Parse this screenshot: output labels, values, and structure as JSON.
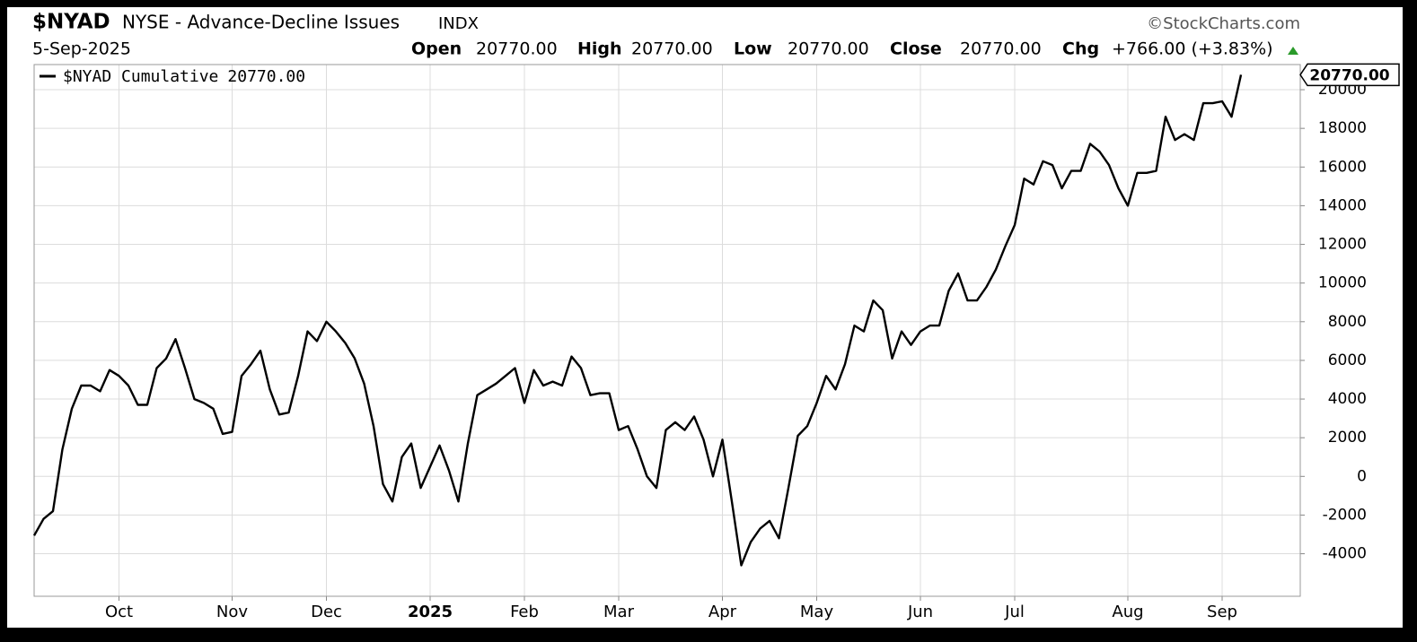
{
  "chart_data": {
    "type": "line",
    "title": "$NYAD",
    "subtitle": "NYSE - Advance-Decline Issues",
    "exchange": "INDX",
    "source": "©StockCharts.com",
    "date": "5-Sep-2025",
    "quote": [
      {
        "label": "Open",
        "value": "20770.00"
      },
      {
        "label": "High",
        "value": "20770.00"
      },
      {
        "label": "Low",
        "value": "20770.00"
      },
      {
        "label": "Close",
        "value": "20770.00"
      },
      {
        "label": "Chg",
        "value": "+766.00 (+3.83%)"
      }
    ],
    "categories": [
      null,
      null,
      null,
      null,
      null,
      null,
      null,
      null,
      null,
      "Oct",
      null,
      null,
      null,
      null,
      null,
      null,
      null,
      null,
      null,
      null,
      null,
      "Nov",
      null,
      null,
      null,
      null,
      null,
      null,
      null,
      null,
      null,
      "Dec",
      null,
      null,
      null,
      null,
      null,
      null,
      null,
      null,
      null,
      null,
      "2025",
      null,
      null,
      null,
      null,
      null,
      null,
      null,
      null,
      null,
      "Feb",
      null,
      null,
      null,
      null,
      null,
      null,
      null,
      null,
      null,
      "Mar",
      null,
      null,
      null,
      null,
      null,
      null,
      null,
      null,
      null,
      null,
      "Apr",
      null,
      null,
      null,
      null,
      null,
      null,
      null,
      null,
      null,
      "May",
      null,
      null,
      null,
      null,
      null,
      null,
      null,
      null,
      null,
      null,
      "Jun",
      null,
      null,
      null,
      null,
      null,
      null,
      null,
      null,
      null,
      "Jul",
      null,
      null,
      null,
      null,
      null,
      null,
      null,
      null,
      null,
      null,
      null,
      "Aug",
      null,
      null,
      null,
      null,
      null,
      null,
      null,
      null,
      null,
      "Sep",
      null,
      null
    ],
    "series": [
      {
        "name": "$NYAD Cumulative",
        "last_value_label": "20770.00",
        "color": "#000000",
        "values": [
          -3060,
          -2200,
          -1800,
          1400,
          3500,
          4700,
          4700,
          4400,
          5500,
          5200,
          4700,
          3700,
          3700,
          5600,
          6100,
          7100,
          5600,
          4000,
          3800,
          3500,
          2200,
          2300,
          5200,
          5800,
          6500,
          4500,
          3200,
          3300,
          5200,
          7500,
          7000,
          8000,
          7500,
          6900,
          6100,
          4800,
          2600,
          -400,
          -1300,
          1000,
          1700,
          -600,
          500,
          1600,
          300,
          -1300,
          1700,
          4200,
          4500,
          4800,
          5200,
          5600,
          3800,
          5500,
          4700,
          4900,
          4700,
          6200,
          5600,
          4200,
          4300,
          4300,
          2400,
          2600,
          1400,
          0,
          -600,
          2400,
          2800,
          2400,
          3100,
          1900,
          0,
          1900,
          -1300,
          -4600,
          -3400,
          -2700,
          -2300,
          -3200,
          -600,
          2100,
          2600,
          3800,
          5200,
          4500,
          5800,
          7800,
          7500,
          9100,
          8600,
          6100,
          7500,
          6800,
          7500,
          7800,
          7800,
          9600,
          10500,
          9100,
          9100,
          9800,
          10700,
          11900,
          13000,
          15400,
          15100,
          16300,
          16100,
          14900,
          15800,
          15800,
          17200,
          16800,
          16100,
          14900,
          14000,
          15700,
          15700,
          15800,
          18600,
          17400,
          17700,
          17400,
          19300,
          19300,
          19400,
          18600,
          20770
        ]
      }
    ],
    "ylim": [
      -6200,
      21300
    ],
    "yticks": [
      -4000,
      -2000,
      0,
      2000,
      4000,
      6000,
      8000,
      10000,
      12000,
      14000,
      16000,
      18000,
      20000
    ],
    "grid": true
  }
}
